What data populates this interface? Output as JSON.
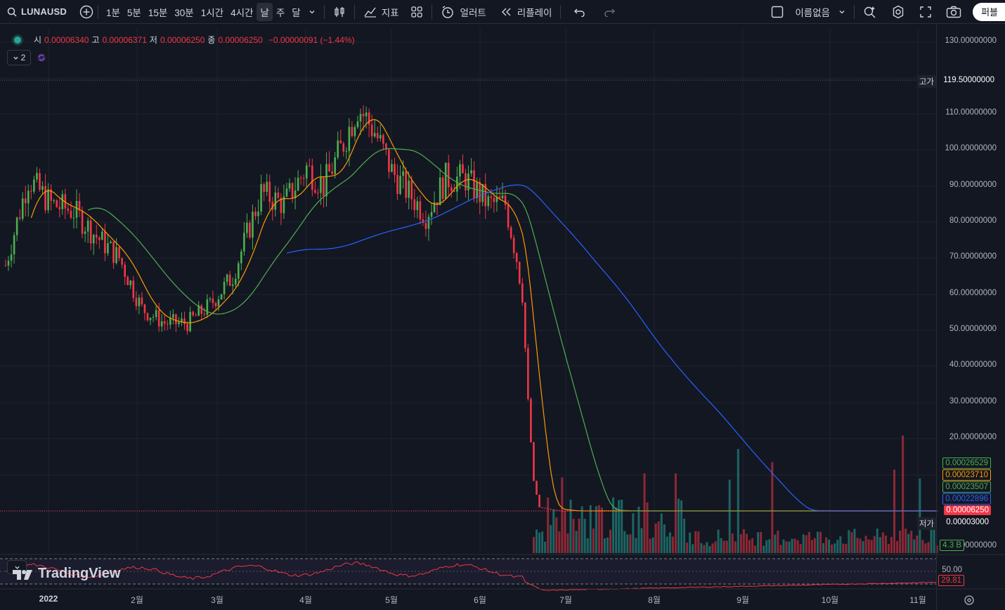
{
  "toolbar": {
    "symbol": "LUNAUSD",
    "intervals": [
      "1분",
      "5분",
      "15분",
      "30분",
      "1시간",
      "4시간",
      "날",
      "주",
      "달"
    ],
    "active_interval": "날",
    "indicators_label": "지표",
    "alerts_label": "얼러트",
    "replay_label": "리플레이",
    "layout_name": "이름없음",
    "publish_label": "퍼블"
  },
  "legend": {
    "open_label": "시",
    "open": "0.00006340",
    "high_label": "고",
    "high": "0.00006371",
    "low_label": "저",
    "low": "0.00006250",
    "close_label": "종",
    "close": "0.00006250",
    "change": "−0.00000091 (−1.44%)",
    "collapsed_count": "2"
  },
  "price_axis": {
    "labels": [
      "130.00000000",
      "110.00000000",
      "100.00000000",
      "90.00000000",
      "80.00000000",
      "70.00000000",
      "60.00000000",
      "50.00000000",
      "40.00000000",
      "30.00000000",
      "20.00000000",
      "0.00000000"
    ],
    "high_tag": "고가",
    "high_value": "119.50000000",
    "low_tag": "저가",
    "low_value": "0.00003000",
    "ma_values": [
      {
        "value": "0.00026529",
        "color": "#4caf50"
      },
      {
        "value": "0.00023710",
        "color": "#ff9800"
      },
      {
        "value": "0.00023507",
        "color": "#4caf50"
      },
      {
        "value": "0.00022896",
        "color": "#2962ff"
      }
    ],
    "last_price": "0.00006250",
    "volume_tag": "4.3 B",
    "rsi_level": "50.00",
    "rsi_value": "29.81"
  },
  "time_axis": [
    "2022",
    "2월",
    "3월",
    "4월",
    "5월",
    "6월",
    "7월",
    "8월",
    "9월",
    "10월",
    "11월"
  ],
  "branding": "TradingView",
  "chart_data": {
    "type": "candlestick",
    "ylim": [
      0,
      130
    ],
    "daily_close_waypoints": [
      [
        0,
        68
      ],
      [
        8,
        92
      ],
      [
        16,
        85
      ],
      [
        24,
        83
      ],
      [
        32,
        76
      ],
      [
        40,
        70
      ],
      [
        48,
        56
      ],
      [
        56,
        52
      ],
      [
        64,
        52
      ],
      [
        72,
        57
      ],
      [
        80,
        65
      ],
      [
        90,
        88
      ],
      [
        98,
        85
      ],
      [
        106,
        95
      ],
      [
        112,
        90
      ],
      [
        118,
        100
      ],
      [
        124,
        112
      ],
      [
        130,
        105
      ],
      [
        136,
        94
      ],
      [
        142,
        88
      ],
      [
        148,
        82
      ],
      [
        155,
        92
      ],
      [
        162,
        92
      ],
      [
        170,
        85
      ],
      [
        176,
        85
      ],
      [
        180,
        70
      ],
      [
        182,
        60
      ],
      [
        184,
        30
      ],
      [
        186,
        8
      ],
      [
        188,
        1
      ],
      [
        195,
        0.01
      ],
      [
        300,
        0.0003
      ],
      [
        328,
        0.0001
      ]
    ],
    "volume_spike_days": [
      196,
      225,
      236,
      255,
      258,
      270,
      313,
      316,
      322,
      330
    ],
    "rsi_last": 29.81,
    "rsi_level": 50
  }
}
